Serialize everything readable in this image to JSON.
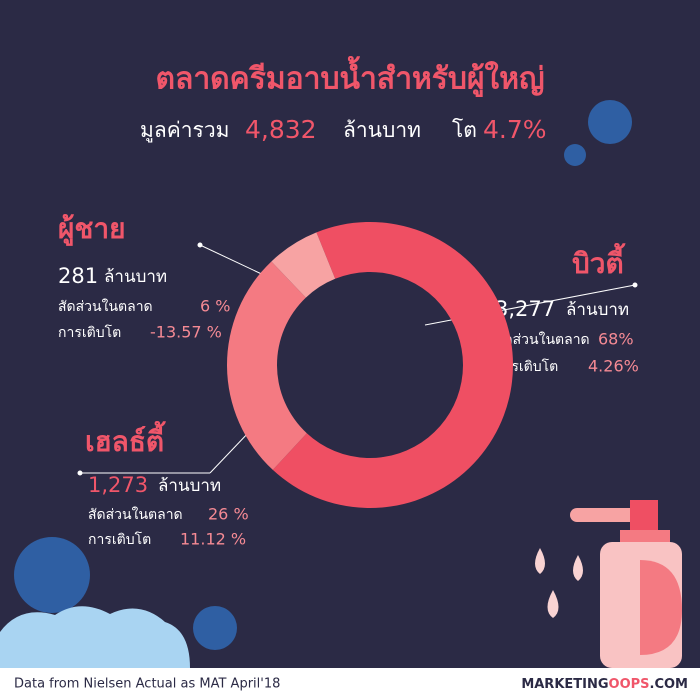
{
  "chart_data": {
    "type": "donut",
    "title": "ตลาดครีมอาบน้ำสำหรับผู้ใหญ่",
    "summary": {
      "label": "มูลค่ารวม",
      "total": "4,832",
      "unit": "ล้านบาท",
      "growth_label": "โต",
      "growth": "4.7%"
    },
    "categories": [
      "บิวตี้",
      "เฮลธ์ตี้",
      "ผู้ชาย"
    ],
    "values": [
      68,
      26,
      6
    ],
    "value_labels": [
      "68%",
      "26 %",
      "6 %"
    ],
    "colors": [
      "#ef4f63",
      "#f47a82",
      "#f7a3a3"
    ],
    "sales": [
      "3,277",
      "1,273",
      "281"
    ],
    "growth": [
      "4.26%",
      "11.12 %",
      "-13.57 %"
    ],
    "sales_unit": "ล้านบาท",
    "share_label": "สัดส่วนในตลาด",
    "growth_label": "การเติบโต",
    "source": "Data from Nielsen Actual as MAT April'18",
    "brand": [
      "MARKETING",
      "OOPS",
      ".COM"
    ]
  }
}
